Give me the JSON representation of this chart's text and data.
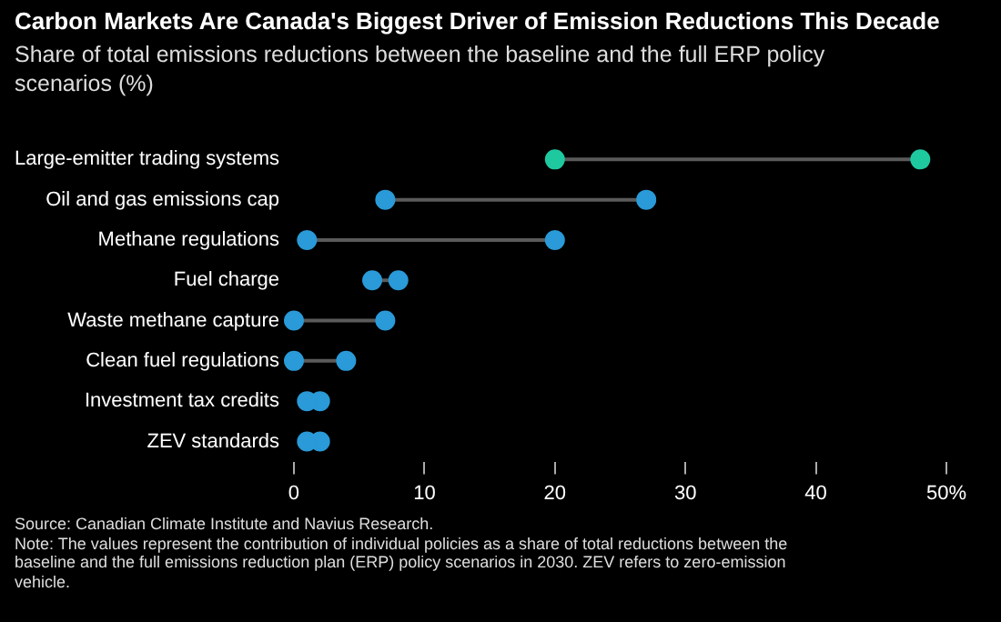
{
  "chart_data": {
    "type": "scatter",
    "orientation": "horizontal",
    "title": "Carbon Markets Are Canada's Biggest Driver of Emission Reductions This Decade",
    "subtitle": "Share of total emissions reductions between the baseline and the full ERP policy scenarios (%)",
    "categories": [
      "Large-emitter trading systems",
      "Oil and gas emissions cap",
      "Methane regulations",
      "Fuel charge",
      "Waste methane capture",
      "Clean fuel regulations",
      "Investment tax credits",
      "ZEV standards"
    ],
    "series": [
      {
        "values": [
          20,
          7,
          1,
          6,
          0,
          0,
          1,
          1
        ],
        "colors": [
          "#1fc9a0",
          "#2a9ad8",
          "#2a9ad8",
          "#2a9ad8",
          "#2a9ad8",
          "#2a9ad8",
          "#2a9ad8",
          "#2a9ad8"
        ]
      },
      {
        "values": [
          48,
          27,
          20,
          8,
          7,
          4,
          2,
          2
        ],
        "colors": [
          "#1fc9a0",
          "#2a9ad8",
          "#2a9ad8",
          "#2a9ad8",
          "#2a9ad8",
          "#2a9ad8",
          "#2a9ad8",
          "#2a9ad8"
        ]
      }
    ],
    "xlim": [
      0,
      50
    ],
    "xticks": [
      0,
      10,
      20,
      30,
      40,
      {
        "value": 50,
        "label": "50%"
      }
    ],
    "marker": "circle",
    "grid": false,
    "legend": false,
    "annotations": [
      "Source: Canadian Climate Institute and Navius Research.",
      "Note: The values represent the contribution of individual policies as a share of total reductions between the baseline and the full emissions reduction plan (ERP) policy scenarios in 2030. ZEV refers to zero-emission vehicle."
    ]
  }
}
